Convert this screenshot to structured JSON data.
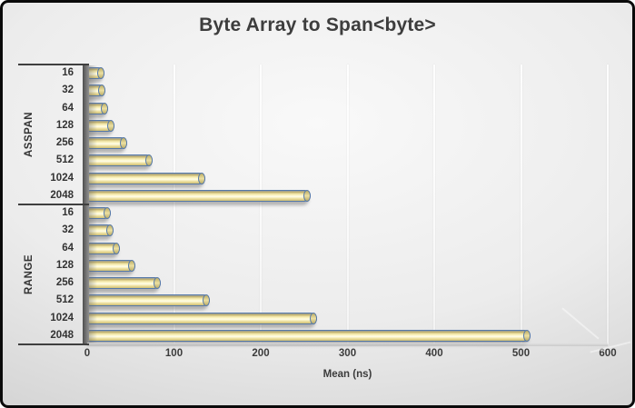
{
  "chart_data": {
    "type": "bar",
    "orientation": "horizontal",
    "title": "Byte Array to Span<byte>",
    "xlabel": "Mean (ns)",
    "xlim": [
      0,
      600
    ],
    "xticks": [
      0,
      100,
      200,
      300,
      400,
      500,
      600
    ],
    "grid": true,
    "legend": "none",
    "categories": [
      "16",
      "32",
      "64",
      "128",
      "256",
      "512",
      "1024",
      "2048"
    ],
    "series": [
      {
        "name": "ASSPAN",
        "values": [
          20,
          21,
          24,
          31,
          46,
          75,
          136,
          258
        ]
      },
      {
        "name": "RANGE",
        "values": [
          27,
          30,
          38,
          55,
          85,
          141,
          265,
          511
        ]
      }
    ],
    "colors": {
      "bar_fill": "#FCF5BC",
      "bar_fill_shade": "#CDBC72",
      "bar_edge": "#5578A8",
      "axis_line": "#3F3F3F",
      "text": "#333333",
      "background_light": "#F9F9F9",
      "background_dark": "#C2C2C2"
    }
  }
}
